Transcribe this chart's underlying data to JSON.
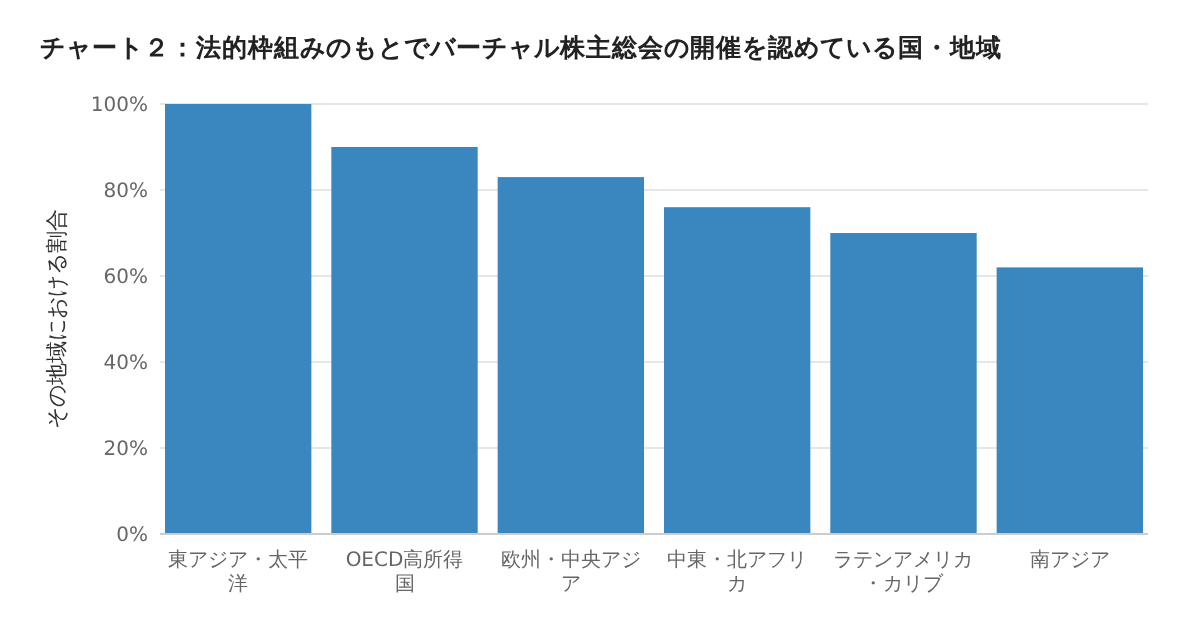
{
  "chart_data": {
    "type": "bar",
    "title": "チャート２：法的枠組みのもとでバーチャル株主総会の開催を認めている国・地域",
    "ylabel": "その地域における割合",
    "categories": [
      "東アジア・太平洋",
      "OECD高所得国",
      "欧州・中央アジア",
      "中東・北アフリカ",
      "ラテンアメリカ・カリブ",
      "南アジア"
    ],
    "values": [
      100,
      90,
      83,
      76,
      70,
      62
    ],
    "color": "#3a87c0",
    "ylim": [
      0,
      100
    ],
    "yticks": [
      {
        "value": 0,
        "label": "0%"
      },
      {
        "value": 20,
        "label": "20%"
      },
      {
        "value": 40,
        "label": "40%"
      },
      {
        "value": 60,
        "label": "60%"
      },
      {
        "value": 80,
        "label": "80%"
      },
      {
        "value": 100,
        "label": "100%"
      }
    ],
    "grid": "y"
  }
}
